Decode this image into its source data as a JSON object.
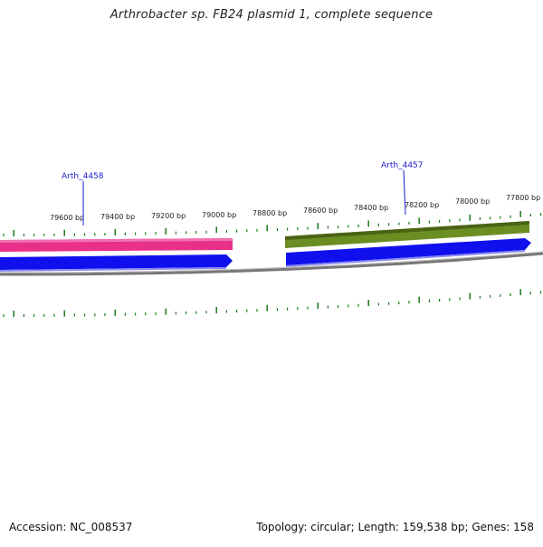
{
  "title": "Arthrobacter sp. FB24 plasmid 1, complete sequence",
  "footer": {
    "accession": "Accession: NC_008537",
    "summary": "Topology: circular; Length: 159,538 bp; Genes: 158"
  },
  "scale_labels": [
    "79600 bp",
    "79400 bp",
    "79200 bp",
    "79000 bp",
    "78800 bp",
    "78600 bp",
    "78400 bp",
    "78200 bp",
    "78000 bp",
    "77800 bp"
  ],
  "gene_labels": [
    "Arth_4458",
    "Arth_4457"
  ],
  "colors": {
    "gene_pink": "#e8308a",
    "gene_olive": "#6b8e23",
    "cds_blue": "#1010ee",
    "backbone": "#888888",
    "ticks": "#1a7a1a",
    "label_blue": "#1a1acc"
  }
}
